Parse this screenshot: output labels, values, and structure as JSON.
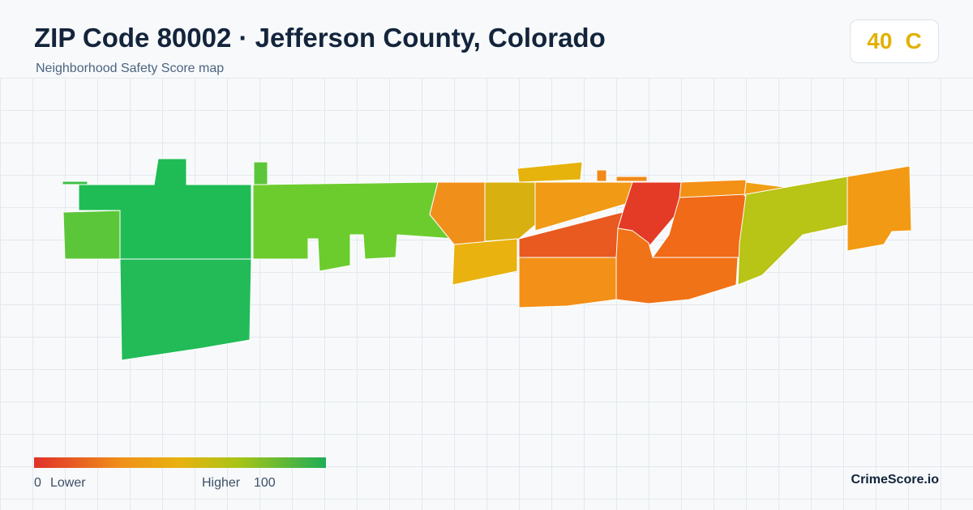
{
  "header": {
    "title": "ZIP Code 80002 · Jefferson County, Colorado",
    "subtitle": "Neighborhood Safety Score map"
  },
  "score": {
    "value": 40,
    "grade": "C"
  },
  "legend": {
    "min": 0,
    "min_label": "Lower",
    "max_label": "Higher",
    "max": 100
  },
  "brand": "CrimeScore.io"
}
